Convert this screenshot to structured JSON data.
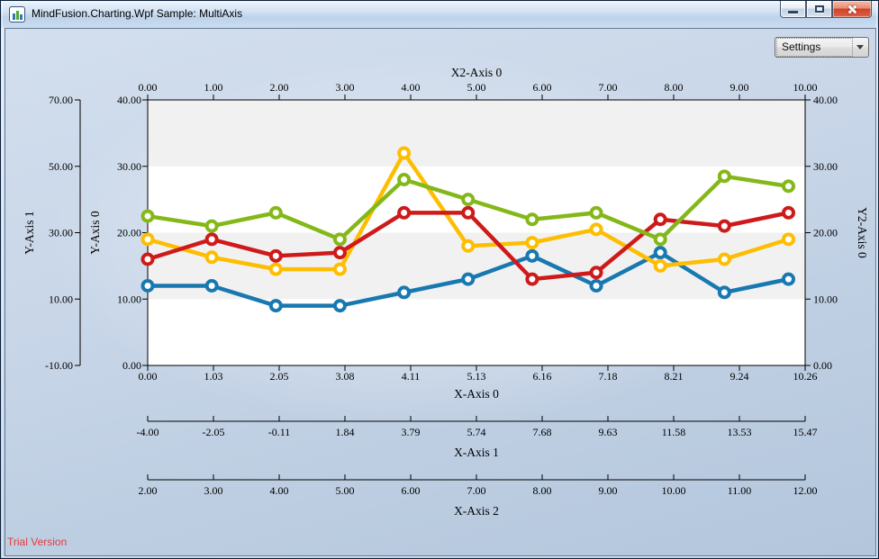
{
  "window": {
    "title": "MindFusion.Charting.Wpf Sample: MultiAxis",
    "icon": "bar-chart-icon",
    "controls": [
      "minimize-icon",
      "maximize-icon",
      "close-icon"
    ]
  },
  "toolbar": {
    "settings_label": "Settings"
  },
  "footer": {
    "trial_label": "Trial Version",
    "trial_color": "#e23b3b"
  },
  "chart_data": {
    "type": "line",
    "x_values": [
      0,
      1,
      2,
      3,
      4,
      5,
      6,
      7,
      8,
      9,
      10
    ],
    "series": [
      {
        "name": "series-blue",
        "color": "#1878B0",
        "values": [
          12,
          12,
          9,
          9,
          11,
          13,
          16.5,
          12,
          17,
          11,
          13
        ]
      },
      {
        "name": "series-yellow",
        "color": "#FDBE02",
        "values": [
          19,
          16.3,
          14.5,
          14.5,
          32,
          18,
          18.5,
          20.5,
          15,
          16,
          19
        ]
      },
      {
        "name": "series-red",
        "color": "#CE1A1A",
        "values": [
          16,
          19,
          16.5,
          17,
          23,
          23,
          13,
          14,
          22,
          21,
          23
        ]
      },
      {
        "name": "series-green",
        "color": "#83B818",
        "values": [
          22.5,
          21,
          23,
          19,
          28,
          25,
          22,
          23,
          19,
          28.5,
          27
        ]
      }
    ],
    "axes": {
      "x0": {
        "title": "X-Axis 0",
        "min": 0,
        "max": 10.26,
        "ticks": [
          "0.00",
          "1.03",
          "2.05",
          "3.08",
          "4.11",
          "5.13",
          "6.16",
          "7.18",
          "8.21",
          "9.24",
          "10.26"
        ]
      },
      "x1": {
        "title": "X-Axis 1",
        "min": -4,
        "max": 15.47,
        "ticks": [
          "-4.00",
          "-2.05",
          "-0.11",
          "1.84",
          "3.79",
          "5.74",
          "7.68",
          "9.63",
          "11.58",
          "13.53",
          "15.47"
        ]
      },
      "x2_bottom": {
        "title": "X-Axis 2",
        "min": 2,
        "max": 12,
        "ticks": [
          "2.00",
          "3.00",
          "4.00",
          "5.00",
          "6.00",
          "7.00",
          "8.00",
          "9.00",
          "10.00",
          "11.00",
          "12.00"
        ]
      },
      "x2_top": {
        "title": "X2-Axis 0",
        "min": 0,
        "max": 10,
        "ticks": [
          "0.00",
          "1.00",
          "2.00",
          "3.00",
          "4.00",
          "5.00",
          "6.00",
          "7.00",
          "8.00",
          "9.00",
          "10.00"
        ]
      },
      "y0": {
        "title": "Y-Axis 0",
        "min": 0,
        "max": 40,
        "ticks": [
          "40.00",
          "30.00",
          "20.00",
          "10.00",
          "0.00"
        ]
      },
      "y1": {
        "title": "Y-Axis 1",
        "min": -10,
        "max": 70,
        "ticks": [
          "70.00",
          "50.00",
          "30.00",
          "10.00",
          "-10.00"
        ]
      },
      "y2": {
        "title": "Y2-Axis 0",
        "min": 0,
        "max": 40,
        "ticks": [
          "40.00",
          "30.00",
          "20.00",
          "10.00",
          "0.00"
        ]
      }
    },
    "plot": {
      "bg": "#ffffff",
      "stripe_color": "#f1f1f1",
      "stripe_bands": [
        [
          30,
          40
        ],
        [
          10,
          20
        ]
      ],
      "grid": "horizontal-stripes",
      "legend": "none"
    }
  }
}
